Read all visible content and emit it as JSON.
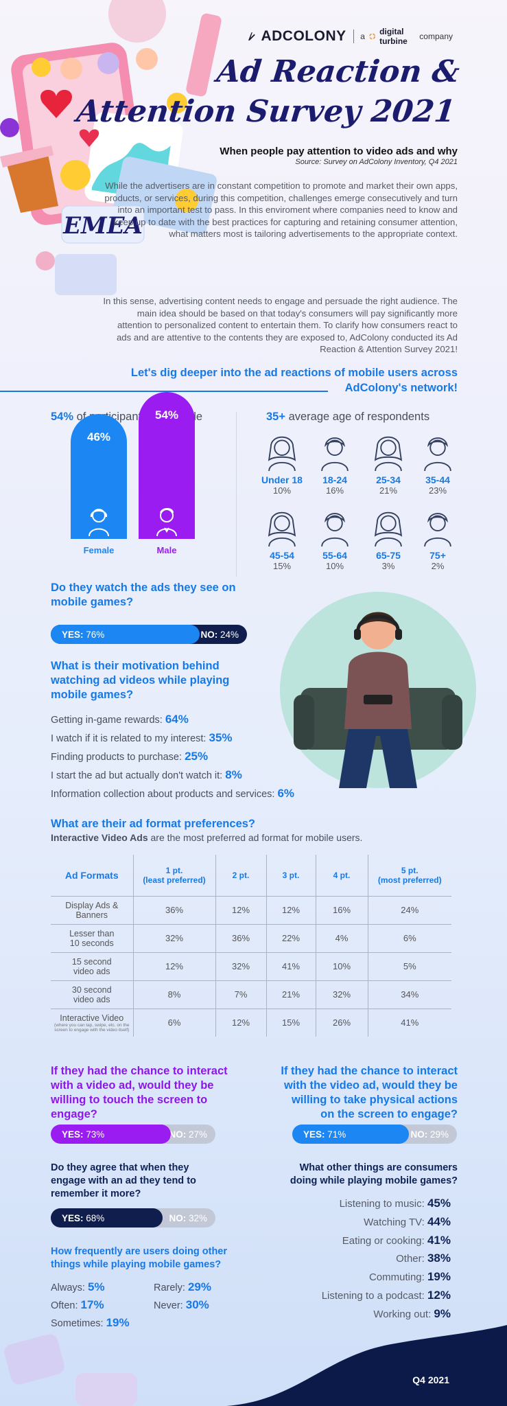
{
  "header": {
    "brand": "ADCOLONY",
    "brand_tag_prefix": "a",
    "brand_tag_company": "digital turbine",
    "brand_tag_suffix": "company",
    "title_line1": "Ad Reaction &",
    "title_line2": "Attention Survey 2021",
    "region": "EMEA",
    "subtitle": "When people pay attention to video ads and why",
    "source": "Source: Survey on AdColony Inventory, Q4 2021"
  },
  "intro": {
    "p1": "While the advertisers are in constant competition to promote and market their own apps, products, or services, during this competition, challenges emerge consecutively and turn into an important test to pass. In this enviroment where companies need to know and keep up to date with the best practices for capturing and retaining consumer attention, what matters most is tailoring advertisements to the appropriate context.",
    "p2": "In this sense, advertising content needs to engage and persuade the right audience. The main idea should be based on that today's consumers will pay significantly more attention to personalized content  to entertain them. To clarify how consumers react to ads and are attentive to the contents they are exposed to, AdColony conducted its Ad Reaction & Attention Survey 2021!",
    "dig_line1": "Let's dig deeper into the ad reactions of mobile users across",
    "dig_line2": "AdColony's network!"
  },
  "gender": {
    "headline_value": "54%",
    "headline_text": " of participants were male",
    "female_value": "46%",
    "female_label": "Female",
    "female_fraction": 0.46,
    "male_value": "54%",
    "male_label": "Male",
    "male_fraction": 0.54,
    "female_color": "#1c86f2",
    "male_color": "#9a1cf0"
  },
  "age": {
    "headline_value": "35+",
    "headline_text": " average age of respondents",
    "groups": [
      {
        "label": "Under 18",
        "value": "10%"
      },
      {
        "label": "18-24",
        "value": "16%"
      },
      {
        "label": "25-34",
        "value": "21%"
      },
      {
        "label": "35-44",
        "value": "23%"
      },
      {
        "label": "45-54",
        "value": "15%"
      },
      {
        "label": "55-64",
        "value": "10%"
      },
      {
        "label": "65-75",
        "value": "3%"
      },
      {
        "label": "75+",
        "value": "2%"
      }
    ]
  },
  "watch": {
    "question": "Do they watch the ads they see on mobile games?",
    "yes_label": "YES:",
    "yes_value": "76%",
    "yes_fraction": 0.76,
    "no_label": "NO:",
    "no_value": "24%"
  },
  "motivation": {
    "question": "What is their motivation behind watching ad videos while playing mobile games?",
    "items": [
      {
        "text": "Getting in-game rewards: ",
        "value": "64%"
      },
      {
        "text": "I watch if it is related to my interest: ",
        "value": "35%"
      },
      {
        "text": "Finding products to purchase: ",
        "value": "25%"
      },
      {
        "text": "I start the ad but actually don't watch it: ",
        "value": "8%"
      },
      {
        "text": "Information collection about products and services: ",
        "value": "6%"
      }
    ]
  },
  "formats": {
    "question": "What are their ad format preferences?",
    "note_bold": "Interactive Video Ads",
    "note_rest": " are the most preferred ad format for mobile users.",
    "headers": [
      "Ad Formats",
      "1 pt.",
      "(least preferred)",
      "2 pt.",
      "3 pt.",
      "4 pt.",
      "5 pt.",
      "(most preferred)"
    ],
    "rows": [
      {
        "label1": "Display Ads &",
        "label2": "Banners",
        "values": [
          "36%",
          "12%",
          "12%",
          "16%",
          "24%"
        ]
      },
      {
        "label1": "Lesser than",
        "label2": "10 seconds",
        "values": [
          "32%",
          "36%",
          "22%",
          "4%",
          "6%"
        ]
      },
      {
        "label1": "15 second",
        "label2": "video ads",
        "values": [
          "12%",
          "32%",
          "41%",
          "10%",
          "5%"
        ]
      },
      {
        "label1": "30 second",
        "label2": "video ads",
        "values": [
          "8%",
          "7%",
          "21%",
          "32%",
          "34%"
        ]
      },
      {
        "label1": "Interactive Video",
        "label2": "(where you can tap, swipe, etc. on the screen to engage with the video itself)",
        "values": [
          "6%",
          "12%",
          "15%",
          "26%",
          "41%"
        ]
      }
    ]
  },
  "touch": {
    "question": "If they had the chance to interact with a video ad, would they be willing to touch the screen to engage?",
    "yes_label": "YES:",
    "yes_value": "73%",
    "yes_fraction": 0.73,
    "no_label": "NO:",
    "no_value": "27%"
  },
  "physical": {
    "question": "If they had the chance to interact with the video ad, would they be willing to take physical actions on the screen to engage?",
    "yes_label": "YES:",
    "yes_value": "71%",
    "yes_fraction": 0.71,
    "no_label": "NO:",
    "no_value": "29%"
  },
  "remember": {
    "question": "Do they agree that when they engage with an ad they tend to remember it more?",
    "yes_label": "YES:",
    "yes_value": "68%",
    "yes_fraction": 0.68,
    "no_label": "NO:",
    "no_value": "32%"
  },
  "frequency": {
    "question": "How frequently are users doing other things while playing mobile games?",
    "items": [
      {
        "text": "Always: ",
        "value": "5%"
      },
      {
        "text": "Rarely: ",
        "value": "29%"
      },
      {
        "text": "Often: ",
        "value": "17%"
      },
      {
        "text": "Never: ",
        "value": "30%"
      },
      {
        "text": "Sometimes: ",
        "value": "19%"
      }
    ]
  },
  "other_things": {
    "question": "What other things are consumers doing while playing mobile games?",
    "items": [
      {
        "text": "Listening to music: ",
        "value": "45%"
      },
      {
        "text": "Watching TV: ",
        "value": "44%"
      },
      {
        "text": "Eating or cooking: ",
        "value": "41%"
      },
      {
        "text": "Other: ",
        "value": "38%"
      },
      {
        "text": "Commuting: ",
        "value": "19%"
      },
      {
        "text": "Listening to a podcast: ",
        "value": "12%"
      },
      {
        "text": "Working out: ",
        "value": "9%"
      }
    ]
  },
  "footer": {
    "label": "Q4 2021"
  },
  "colors": {
    "blue": "#1679e6",
    "purple": "#8d17e8",
    "navy": "#0f2255",
    "grey_bar": "#c3c8d6"
  }
}
